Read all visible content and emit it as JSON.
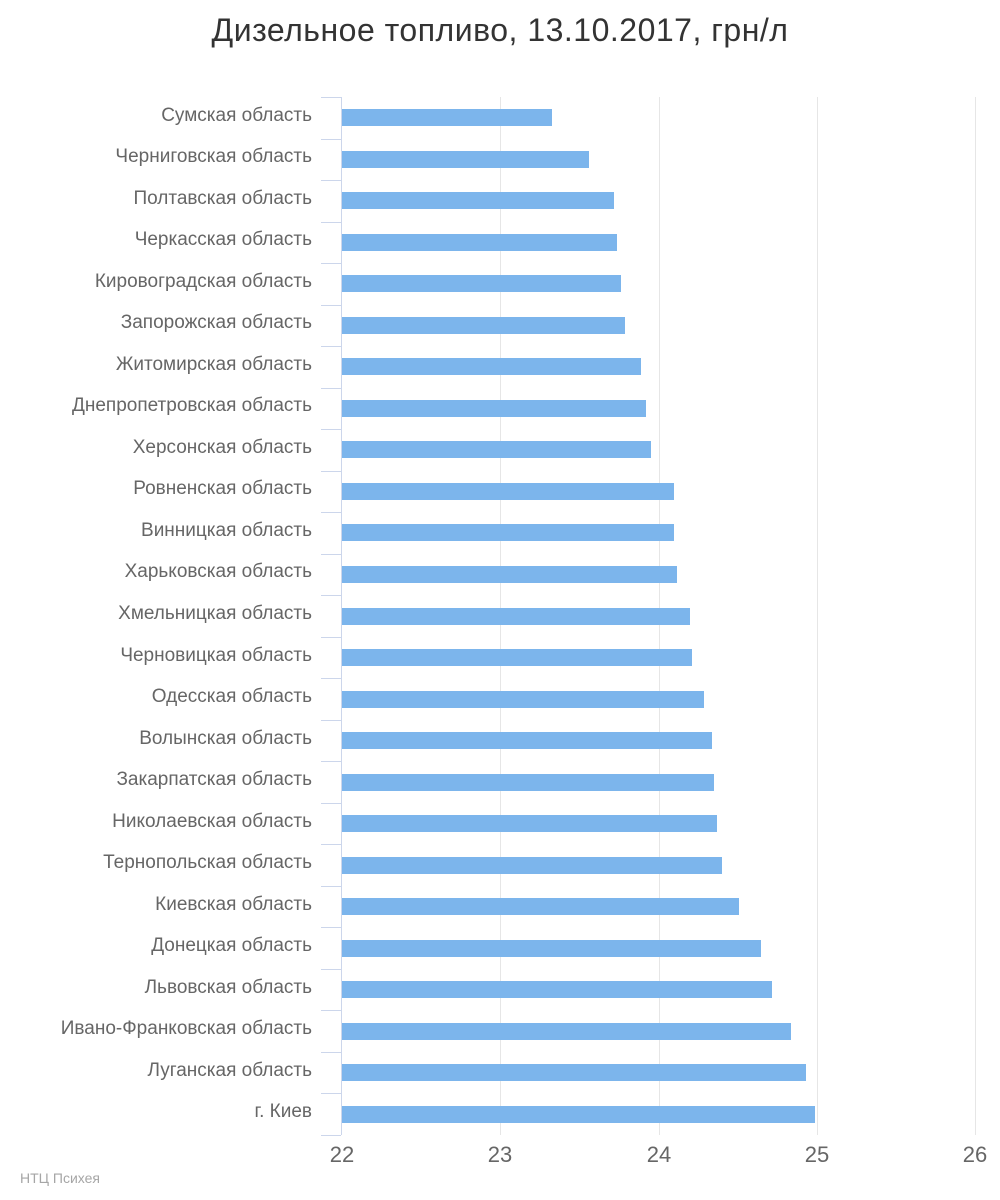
{
  "title": "Дизельное топливо, 13.10.2017, грн/л",
  "credits": "НТЦ Психея",
  "colors": {
    "bar": "#7cb5ec",
    "grid": "#e6e6e6",
    "axis": "#ccd6eb",
    "label": "#666666",
    "title": "#333333",
    "credits": "#a6a6a6"
  },
  "chart_data": {
    "type": "bar",
    "orientation": "horizontal",
    "title": "Дизельное топливо, 13.10.2017, грн/л",
    "xlabel": "",
    "ylabel": "",
    "xlim": [
      22,
      26
    ],
    "xticks": [
      22,
      23,
      24,
      25,
      26
    ],
    "grid": true,
    "legend": false,
    "bars_start_at": 22,
    "categories": [
      "Сумская область",
      "Черниговская область",
      "Полтавская область",
      "Черкасская область",
      "Кировоградская область",
      "Запорожская область",
      "Житомирская область",
      "Днепропетровская область",
      "Херсонская область",
      "Ровненская область",
      "Винницкая область",
      "Харьковская область",
      "Хмельницкая область",
      "Черновицкая область",
      "Одесская область",
      "Волынская область",
      "Закарпатская область",
      "Николаевская область",
      "Тернопольская область",
      "Киевская область",
      "Донецкая область",
      "Львовская область",
      "Ивано-Франковская область",
      "Луганская область",
      "г. Киев"
    ],
    "values": [
      23.33,
      23.56,
      23.72,
      23.74,
      23.76,
      23.79,
      23.89,
      23.92,
      23.95,
      24.1,
      24.1,
      24.12,
      24.2,
      24.21,
      24.29,
      24.34,
      24.35,
      24.37,
      24.4,
      24.51,
      24.65,
      24.72,
      24.84,
      24.93,
      24.99
    ],
    "series_name": "грн/л",
    "footer": "НТЦ Психея"
  }
}
